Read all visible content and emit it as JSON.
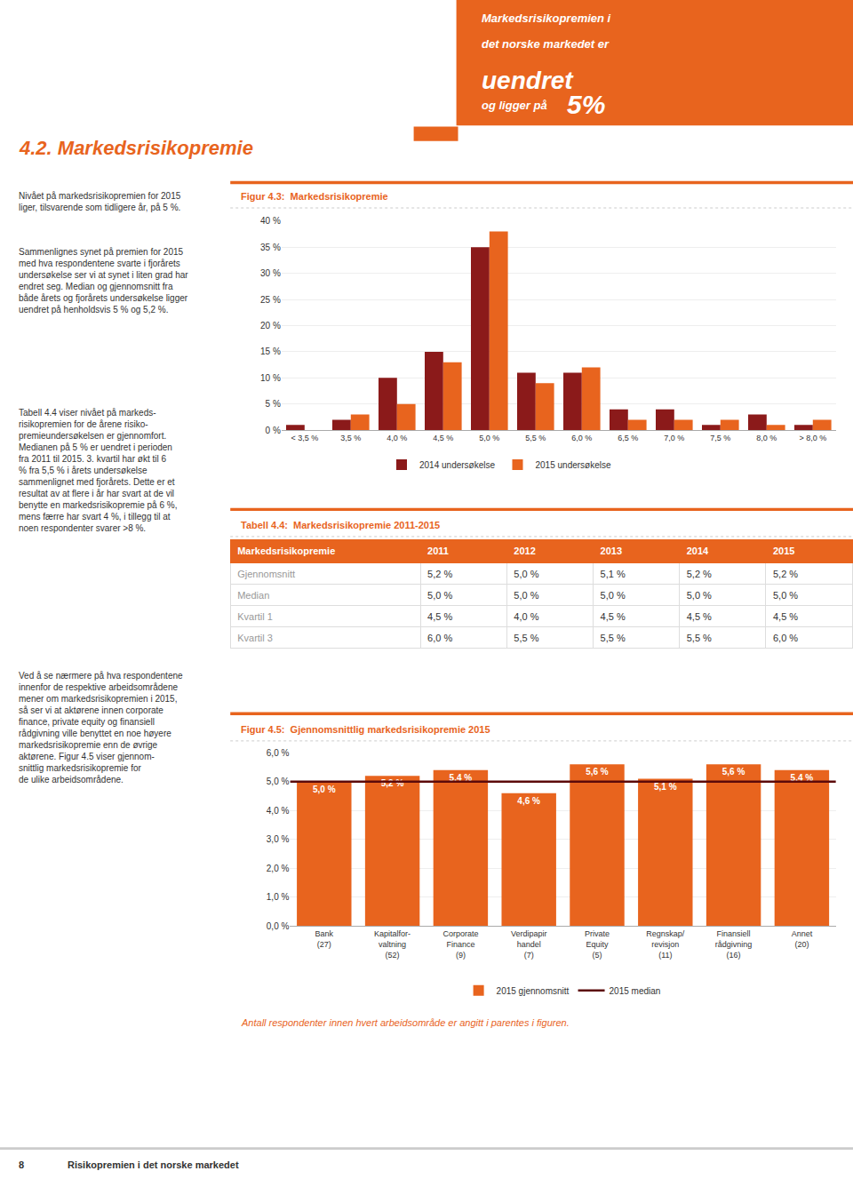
{
  "color": "#E8641E",
  "header": [
    "Markedsrisikopremien i",
    "det norske markedet er",
    "uendret",
    "og ligger på ",
    "5%"
  ],
  "section_title": "4.2. Markedsrisikopremie",
  "text_blocks": [
    "Nivået på markedsrisikopremien for 2015\nliger, tilsvarende som tidligere år, på 5 %.",
    "Sammenlignes synet på premien for 2015\nmed hva respondentene svarte i fjorårets\nundersøkelse ser vi at synet i liten grad har\nendret seg. Median og gjennomsnitt fra\nbåde årets og fjorårets undersøkelse ligger\nuendret på henholdsvis 5 % og 5,2 %.",
    "Tabell 4.4 viser nivået på markeds-\nrisikopremien for de årene risiko-\npremieundersøkelsen er gjennomfort.\nMedianen på 5 % er uendret i perioden\nfra 2011 til 2015. 3. kvartil har økt til 6\n% fra 5,5 % i årets undersøkelse\nsammenlignet med fjorårets. Dette er et\nresultat av at flere i år har svart at de vil\nbenytte en markedsrisikopremie på 6 %,\nmens færre har svart 4 %, i tillegg til at\nnoen respondenter svarer >8 %.",
    "Ved å se nærmere på hva respondentene\ninnenfor de respektive arbeidsområdene\nmener om markedsrisikopremien i 2015,\nså ser vi at aktørene innen corporate\nfinance, private equity og finansiell\nrådgivning ville benyttet en noe høyere\nmarkedsrisikopremie enn de øvrige\naktørene. Figur 4.5 viser gjennom-\nsnittlig markedsrisikopremie for\nde ulike arbeidsområdene."
  ],
  "chart_data": [
    {
      "type": "bar",
      "title": "Figur 4.3:  Markedsrisikopremie",
      "categories": [
        "< 3,5 %",
        "3,5 %",
        "4,0 %",
        "4,5 %",
        "5,0 %",
        "5,5 %",
        "6,0 %",
        "6,5 %",
        "7,0 %",
        "7,5 %",
        "8,0 %",
        "> 8,0 %"
      ],
      "series": [
        {
          "name": "2014 undersøkelse",
          "color": "#8B1A1A",
          "values": [
            1,
            2,
            10,
            15,
            35,
            11,
            11,
            4,
            4,
            1,
            3,
            1
          ]
        },
        {
          "name": "2015 undersøkelse",
          "color": "#E8641E",
          "values": [
            0,
            3,
            5,
            13,
            38,
            9,
            12,
            2,
            2,
            2,
            1,
            2
          ]
        }
      ],
      "ylim": [
        0,
        40
      ],
      "yticks": [
        {
          "value": 0,
          "label": "0 %"
        },
        {
          "value": 5,
          "label": "5 %"
        },
        {
          "value": 10,
          "label": "10 %"
        },
        {
          "value": 15,
          "label": "15 %"
        },
        {
          "value": 20,
          "label": "20 %"
        },
        {
          "value": 25,
          "label": "25 %"
        },
        {
          "value": 30,
          "label": "30 %"
        },
        {
          "value": 35,
          "label": "35 %"
        },
        {
          "value": 40,
          "label": "40 %"
        }
      ],
      "grid": true,
      "legend": "bottom"
    },
    {
      "type": "table",
      "title": "Tabell 4.4:  Markedsrisikopremie 2011-2015",
      "color": "#E8641E",
      "header": [
        "Markedsrisikopremie",
        "2011",
        "2012",
        "2013",
        "2014",
        "2015"
      ],
      "rows": [
        [
          "Gjennomsnitt",
          "5,2 %",
          "5,0 %",
          "5,1 %",
          "5,2 %",
          "5,2 %"
        ],
        [
          "Median",
          "5,0 %",
          "5,0 %",
          "5,0 %",
          "5,0 %",
          "5,0 %"
        ],
        [
          "Kvartil 1",
          "4,5 %",
          "4,0 %",
          "4,5 %",
          "4,5 %",
          "4,5 %"
        ],
        [
          "Kvartil 3",
          "6,0 %",
          "5,5 %",
          "5,5 %",
          "5,5 %",
          "6,0 %"
        ]
      ]
    },
    {
      "type": "bar",
      "title": "Figur 4.5:  Gjennomsnittlig markedsrisikopremie 2015",
      "categories": [
        "Bank\n(27)",
        "Kapitalfor-\nvaltning\n(52)",
        "Corporate\nFinance\n(9)",
        "Verdipapir\nhandel\n(7)",
        "Private\nEquity\n(5)",
        "Regnskap/\nrevisjon\n(11)",
        "Finansiell\nrådgivning\n(16)",
        "Annet\n(20)"
      ],
      "series": [
        {
          "name": "2015 gjennomsnitt",
          "color": "#E8641E",
          "values": [
            5.0,
            5.2,
            5.4,
            4.6,
            5.6,
            5.1,
            5.6,
            5.4
          ],
          "value_labels": [
            "5,0 %",
            "5,2 %",
            "5,4 %",
            "4,6 %",
            "5,6 %",
            "5,1 %",
            "5,6 %",
            "5,4 %"
          ]
        },
        {
          "name": "2015 median",
          "type": "hline",
          "color": "#5C0A0A",
          "value": 5.0
        }
      ],
      "ylim": [
        0,
        6
      ],
      "yticks": [
        {
          "value": 0.0,
          "label": "0,0 %"
        },
        {
          "value": 1.0,
          "label": "1,0 %"
        },
        {
          "value": 2.0,
          "label": "2,0 %"
        },
        {
          "value": 3.0,
          "label": "3,0 %"
        },
        {
          "value": 4.0,
          "label": "4,0 %"
        },
        {
          "value": 5.0,
          "label": "5,0 %"
        },
        {
          "value": 6.0,
          "label": "6,0 %"
        }
      ],
      "grid": true,
      "legend": "bottom",
      "data_labels": true
    }
  ],
  "footnote": "Antall respondenter innen hvert arbeidsområde er angitt i parentes i figuren.",
  "page_footer": [
    "8",
    "Risikopremien i det norske markedet"
  ]
}
